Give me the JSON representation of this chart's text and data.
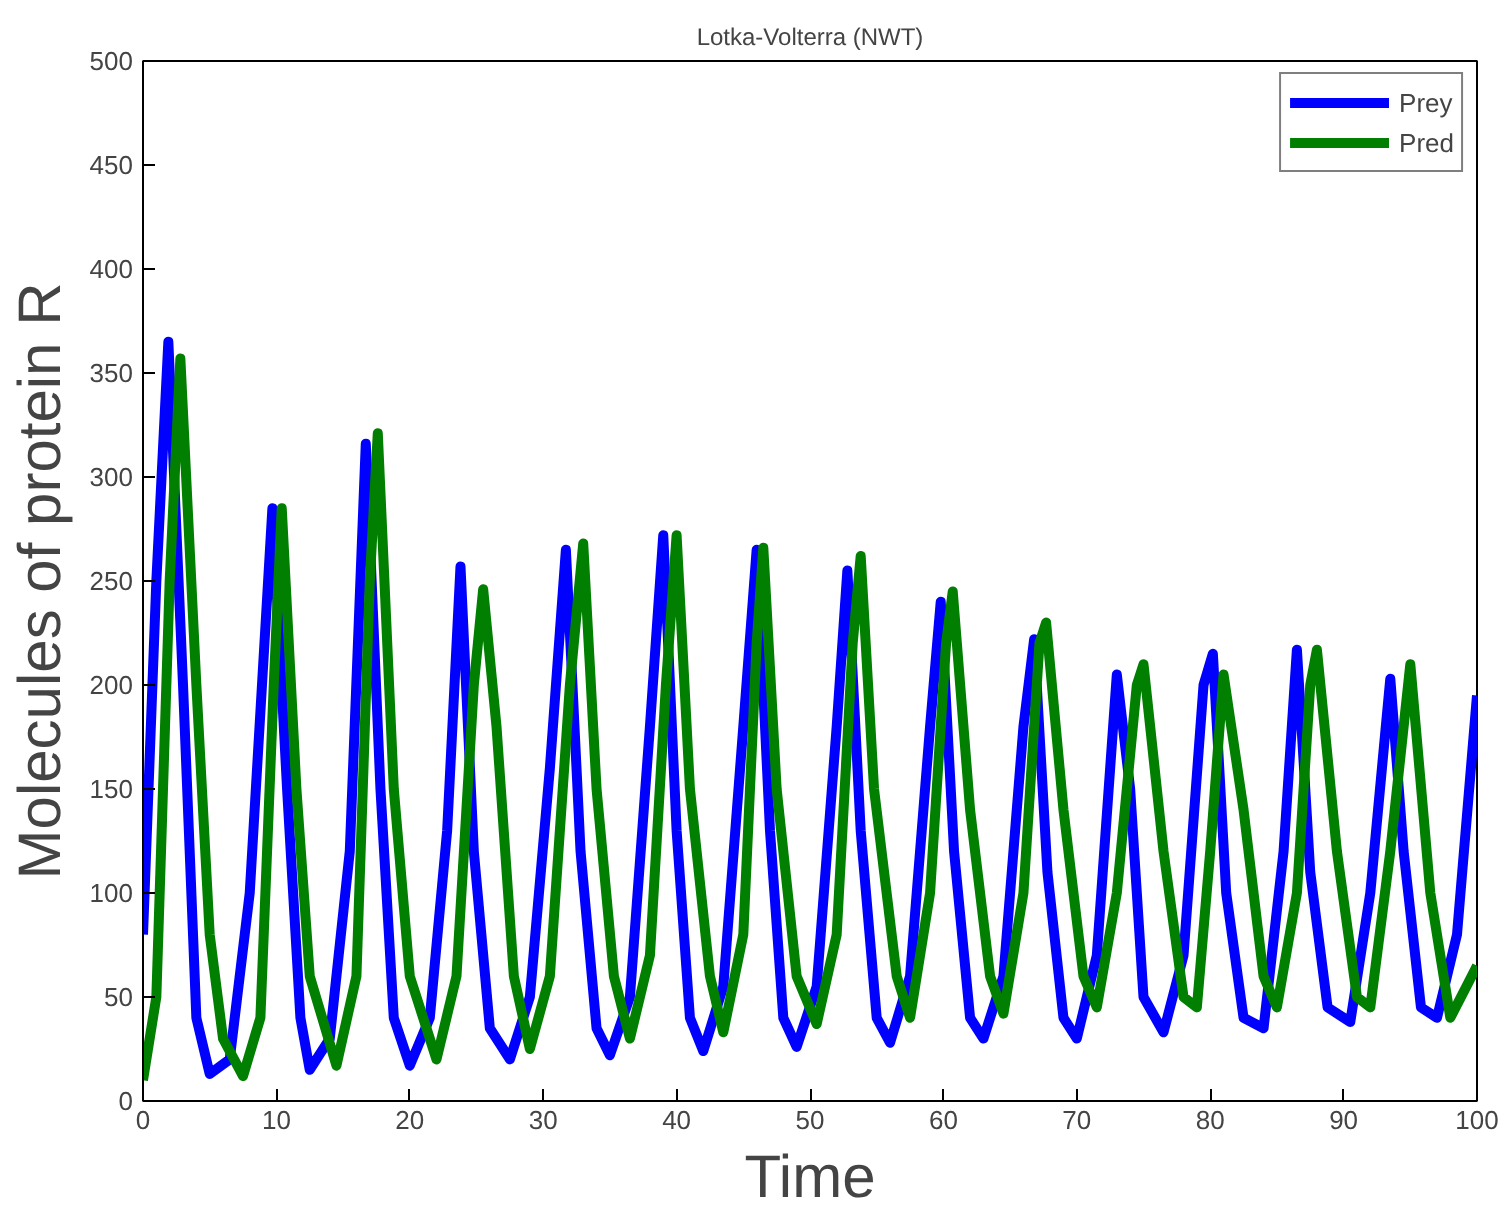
{
  "chart_data": {
    "type": "line",
    "title": "Lotka-Volterra (NWT)",
    "xlabel": "Time",
    "ylabel": "Molecules of protein R",
    "xlim": [
      0,
      100
    ],
    "ylim": [
      0,
      500
    ],
    "xticks": [
      0,
      10,
      20,
      30,
      40,
      50,
      60,
      70,
      80,
      90,
      100
    ],
    "yticks": [
      0,
      50,
      100,
      150,
      200,
      250,
      300,
      350,
      400,
      450,
      500
    ],
    "grid": false,
    "legend": "top right",
    "line_style": "solid",
    "marker": "none",
    "series": [
      {
        "name": "Prey",
        "color": "#0000ff",
        "x": [
          0,
          1,
          1.9,
          3,
          4,
          5,
          6.5,
          8,
          9.7,
          10.8,
          11.8,
          12.5,
          14,
          15.5,
          16.7,
          17.8,
          18.8,
          20,
          21.5,
          22.8,
          23.8,
          24.8,
          26,
          27.5,
          29,
          30.5,
          31.7,
          32.8,
          34,
          35,
          36.5,
          38,
          39,
          40,
          41,
          42,
          43.5,
          45,
          46,
          47,
          48,
          49,
          50.5,
          52,
          52.8,
          53.8,
          55,
          56,
          57.5,
          59,
          59.8,
          60.8,
          62,
          63,
          64.5,
          66,
          66.8,
          67.8,
          69,
          70,
          71.5,
          73,
          74,
          75,
          76.5,
          78,
          79.5,
          80.2,
          81.2,
          82.5,
          84,
          85.5,
          86.5,
          87.5,
          88.8,
          90.5,
          92,
          93.5,
          94.5,
          95.8,
          97,
          98.5,
          100
        ],
        "values": [
          80,
          250,
          365,
          200,
          40,
          13,
          20,
          100,
          285,
          150,
          40,
          15,
          30,
          120,
          316,
          150,
          40,
          17,
          40,
          130,
          257,
          120,
          35,
          20,
          50,
          160,
          265,
          120,
          35,
          22,
          50,
          180,
          272,
          130,
          40,
          24,
          55,
          180,
          265,
          130,
          40,
          26,
          55,
          180,
          255,
          130,
          40,
          28,
          60,
          180,
          240,
          120,
          40,
          30,
          60,
          180,
          222,
          110,
          40,
          30,
          70,
          205,
          150,
          50,
          33,
          70,
          200,
          215,
          100,
          40,
          35,
          120,
          217,
          110,
          45,
          38,
          100,
          203,
          120,
          45,
          40,
          80,
          195
        ]
      },
      {
        "name": "Pred",
        "color": "#007f00",
        "x": [
          0,
          1,
          2,
          2.8,
          4,
          5,
          6,
          7.5,
          8.8,
          9.8,
          10.4,
          11.5,
          12.5,
          14.5,
          16,
          17,
          17.6,
          18.8,
          20,
          22,
          23.5,
          24.8,
          25.5,
          26.5,
          27.8,
          29,
          30.5,
          32,
          33,
          34,
          35.3,
          36.5,
          38,
          39.2,
          40,
          41,
          42.5,
          43.5,
          45,
          46,
          46.5,
          47.5,
          49,
          50.5,
          52,
          53.2,
          53.8,
          54.8,
          56.5,
          57.5,
          59,
          60.2,
          60.7,
          62,
          63.5,
          64.5,
          66,
          67.2,
          67.7,
          69,
          70.5,
          71.5,
          73,
          74.5,
          75,
          76.5,
          78,
          79,
          80,
          81,
          82.5,
          84,
          85,
          86.5,
          87.5,
          88,
          89.5,
          91,
          92,
          93.5,
          95,
          96.5,
          98,
          100
        ],
        "values": [
          10,
          50,
          250,
          357,
          200,
          80,
          30,
          12,
          40,
          200,
          285,
          150,
          60,
          17,
          60,
          250,
          321,
          150,
          60,
          20,
          60,
          200,
          246,
          180,
          60,
          25,
          60,
          200,
          268,
          150,
          60,
          30,
          70,
          200,
          272,
          150,
          60,
          33,
          80,
          220,
          266,
          150,
          60,
          37,
          80,
          220,
          262,
          150,
          60,
          40,
          100,
          220,
          245,
          140,
          60,
          42,
          100,
          220,
          230,
          140,
          60,
          45,
          100,
          200,
          210,
          120,
          50,
          45,
          120,
          205,
          140,
          60,
          45,
          100,
          200,
          217,
          120,
          50,
          45,
          120,
          210,
          100,
          40,
          65
        ]
      }
    ]
  }
}
